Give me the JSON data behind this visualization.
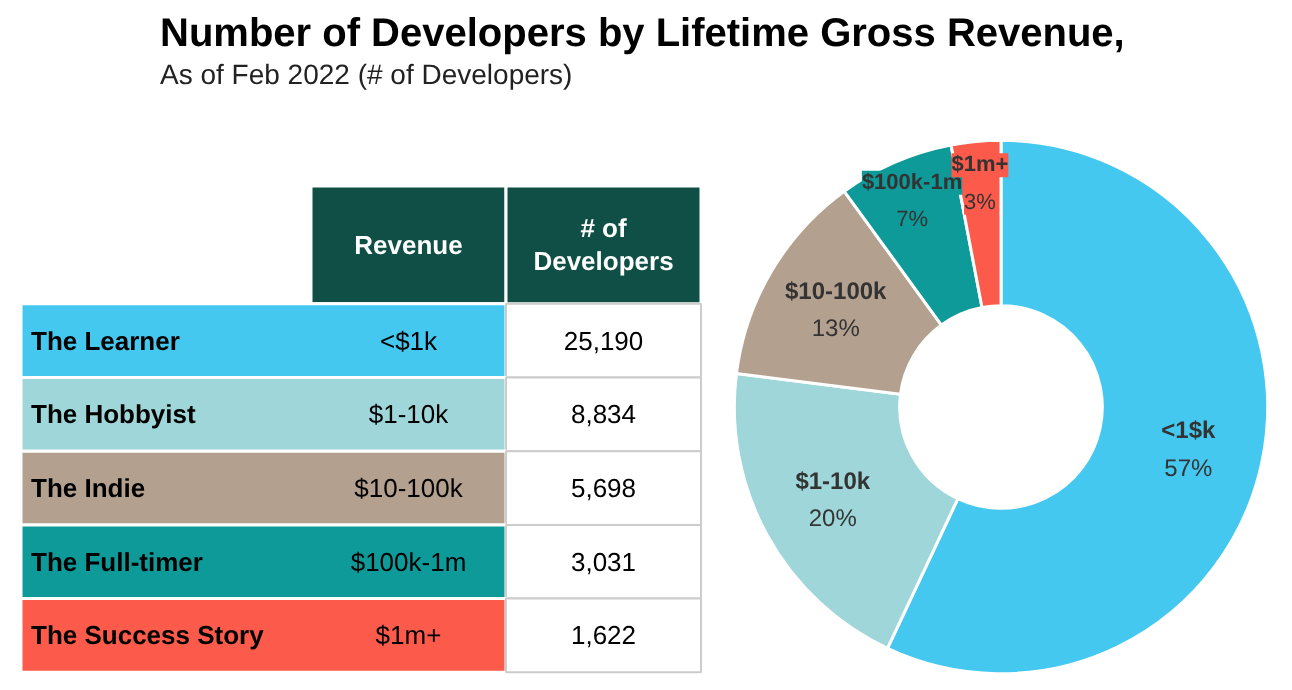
{
  "chart_data": [
    {
      "type": "other",
      "title": "Number of Developers by Lifetime Gross Revenue,",
      "subtitle": "As of Feb 2022 (# of Developers)",
      "categories": [
        "The Learner",
        "The Hobbyist",
        "The Indie",
        "The Full-timer",
        "The Success Story"
      ],
      "value_labels": [
        "25,190",
        "8,834",
        "5,698",
        "3,031",
        "1,622"
      ],
      "annotations": [
        "Revenue",
        "# of Developers",
        "<$1k",
        "$1-10k",
        "$10-100k",
        "$100k-1m",
        "$1m+"
      ],
      "colors": [
        "#45c8f0",
        "#9ed6d9",
        "#b3a08e",
        "#0e9a99",
        "#fc5a4a"
      ]
    },
    {
      "type": "donut",
      "categories": [
        "<1$k",
        "$1-10k",
        "$10-100k",
        "$100k-1m",
        "$1m+"
      ],
      "values": [
        57,
        20,
        13,
        7,
        3
      ],
      "value_labels": [
        "57%",
        "20%",
        "13%",
        "7%",
        "3%"
      ],
      "colors": [
        "#45c8f0",
        "#9ed6d9",
        "#b3a08e",
        "#0e9a99",
        "#fc5a4a"
      ]
    }
  ]
}
